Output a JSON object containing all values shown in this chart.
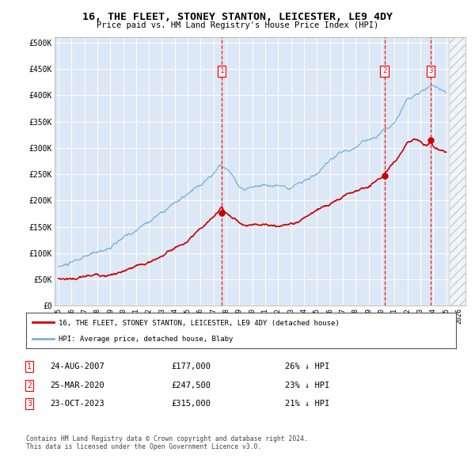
{
  "title": "16, THE FLEET, STONEY STANTON, LEICESTER, LE9 4DY",
  "subtitle": "Price paid vs. HM Land Registry's House Price Index (HPI)",
  "ylabel_ticks": [
    "£0",
    "£50K",
    "£100K",
    "£150K",
    "£200K",
    "£250K",
    "£300K",
    "£350K",
    "£400K",
    "£450K",
    "£500K"
  ],
  "ytick_values": [
    0,
    50000,
    100000,
    150000,
    200000,
    250000,
    300000,
    350000,
    400000,
    450000,
    500000
  ],
  "ylim": [
    0,
    510000
  ],
  "xlim_start": 1994.7,
  "xlim_end": 2026.5,
  "plot_bg": "#dce8f5",
  "hpi_color": "#7ab0d8",
  "price_color": "#cc0000",
  "hatch_start": 2025.3,
  "sales": [
    {
      "year": 2007.64,
      "price": 177000,
      "label": "1",
      "date": "24-AUG-2007",
      "amount": "£177,000",
      "pct": "26%"
    },
    {
      "year": 2020.23,
      "price": 247500,
      "label": "2",
      "date": "25-MAR-2020",
      "amount": "£247,500",
      "pct": "23%"
    },
    {
      "year": 2023.81,
      "price": 315000,
      "label": "3",
      "date": "23-OCT-2023",
      "amount": "£315,000",
      "pct": "21%"
    }
  ],
  "legend_line1": "16, THE FLEET, STONEY STANTON, LEICESTER, LE9 4DY (detached house)",
  "legend_line2": "HPI: Average price, detached house, Blaby",
  "footnote": "Contains HM Land Registry data © Crown copyright and database right 2024.\nThis data is licensed under the Open Government Licence v3.0.",
  "xtick_years": [
    1995,
    1996,
    1997,
    1998,
    1999,
    2000,
    2001,
    2002,
    2003,
    2004,
    2005,
    2006,
    2007,
    2008,
    2009,
    2010,
    2011,
    2012,
    2013,
    2014,
    2015,
    2016,
    2017,
    2018,
    2019,
    2020,
    2021,
    2022,
    2023,
    2024,
    2025,
    2026
  ]
}
